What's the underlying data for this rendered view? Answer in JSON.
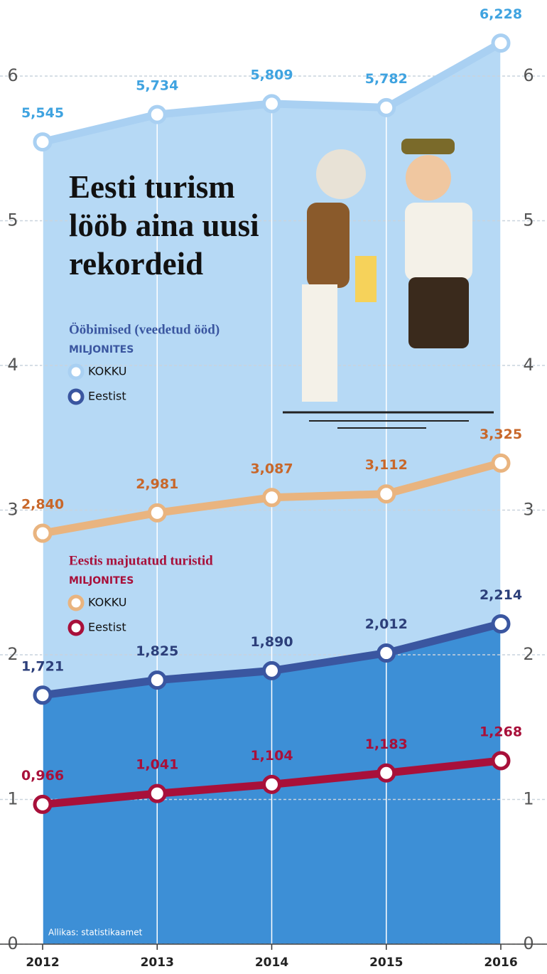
{
  "chart_data": {
    "type": "line",
    "title": "Eesti turism lööb aina uusi rekordeid",
    "source": "Allikas: statistikaamet",
    "categories": [
      "2012",
      "2013",
      "2014",
      "2015",
      "2016"
    ],
    "ylim": [
      0,
      6
    ],
    "yticks": [
      0,
      1,
      2,
      3,
      4,
      5,
      6
    ],
    "grid": true,
    "groups": [
      {
        "title": "Ööbimised (veedetud ööd)",
        "subtitle": "MILJONITES",
        "color": "#3a56a0",
        "series": [
          {
            "name": "KOKKU",
            "color": "#a9d0f2",
            "label_color": "#3fa3e0",
            "area_color": "#b6d9f5",
            "values": [
              5.545,
              5.734,
              5.809,
              5.782,
              6.228
            ],
            "value_labels": [
              "5,545",
              "5,734",
              "5,809",
              "5,782",
              "6,228"
            ]
          },
          {
            "name": "Eestist",
            "color": "#3a56a0",
            "label_color": "#2c3f7a",
            "area_color": "#3d8fd6",
            "values": [
              1.721,
              1.825,
              1.89,
              2.012,
              2.214
            ],
            "value_labels": [
              "1,721",
              "1,825",
              "1,890",
              "2,012",
              "2,214"
            ]
          }
        ]
      },
      {
        "title": "Eestis majutatud turistid",
        "subtitle": "MILJONITES",
        "color": "#a8103a",
        "series": [
          {
            "name": "KOKKU",
            "color": "#e9b47f",
            "label_color": "#c8672a",
            "values": [
              2.84,
              2.981,
              3.087,
              3.112,
              3.325
            ],
            "value_labels": [
              "2,840",
              "2,981",
              "3,087",
              "3,112",
              "3,325"
            ]
          },
          {
            "name": "Eestist",
            "color": "#a8103a",
            "label_color": "#a8103a",
            "values": [
              0.966,
              1.041,
              1.104,
              1.183,
              1.268
            ],
            "value_labels": [
              "0,966",
              "1,041",
              "1,104",
              "1,183",
              "1,268"
            ]
          }
        ]
      }
    ]
  }
}
